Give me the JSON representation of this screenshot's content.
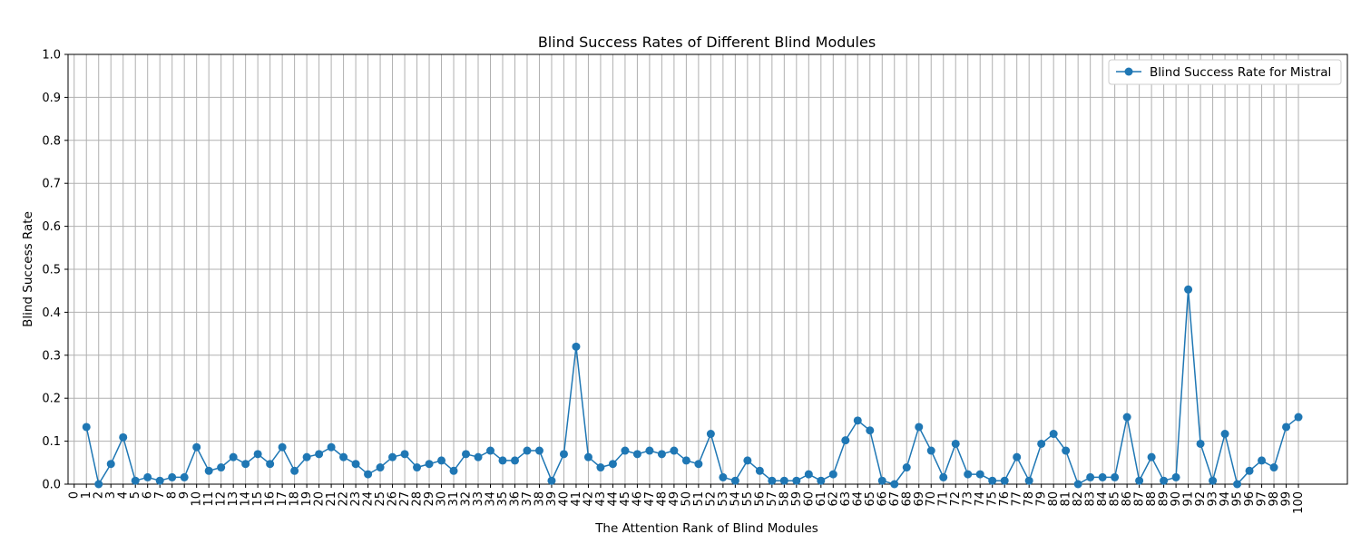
{
  "chart_data": {
    "type": "line",
    "title": "Blind Success Rates of Different Blind Modules",
    "xlabel": "The Attention Rank of Blind Modules",
    "ylabel": "Blind Success Rate",
    "xlim": [
      0,
      100
    ],
    "ylim": [
      0.0,
      1.0
    ],
    "x_ticks": [
      "0",
      "1",
      "2",
      "3",
      "4",
      "5",
      "6",
      "7",
      "8",
      "9",
      "10",
      "11",
      "12",
      "13",
      "14",
      "15",
      "16",
      "17",
      "18",
      "19",
      "20",
      "21",
      "22",
      "23",
      "24",
      "25",
      "26",
      "27",
      "28",
      "29",
      "30",
      "31",
      "32",
      "33",
      "34",
      "35",
      "36",
      "37",
      "38",
      "39",
      "40",
      "41",
      "42",
      "43",
      "44",
      "45",
      "46",
      "47",
      "48",
      "49",
      "50",
      "51",
      "52",
      "53",
      "54",
      "55",
      "56",
      "57",
      "58",
      "59",
      "60",
      "61",
      "62",
      "63",
      "64",
      "65",
      "66",
      "67",
      "68",
      "69",
      "70",
      "71",
      "72",
      "73",
      "74",
      "75",
      "76",
      "77",
      "78",
      "79",
      "80",
      "81",
      "82",
      "83",
      "84",
      "85",
      "86",
      "87",
      "88",
      "89",
      "90",
      "91",
      "92",
      "93",
      "94",
      "95",
      "96",
      "97",
      "98",
      "99",
      "100"
    ],
    "y_ticks": [
      "0.0",
      "0.1",
      "0.2",
      "0.3",
      "0.4",
      "0.5",
      "0.6",
      "0.7",
      "0.8",
      "0.9",
      "1.0"
    ],
    "grid": true,
    "legend_position": "top-right",
    "color": "#1f77b4",
    "series": [
      {
        "name": "Blind Success Rate for Mistral",
        "x": [
          1,
          2,
          3,
          4,
          5,
          6,
          7,
          8,
          9,
          10,
          11,
          12,
          13,
          14,
          15,
          16,
          17,
          18,
          19,
          20,
          21,
          22,
          23,
          24,
          25,
          26,
          27,
          28,
          29,
          30,
          31,
          32,
          33,
          34,
          35,
          36,
          37,
          38,
          39,
          40,
          41,
          42,
          43,
          44,
          45,
          46,
          47,
          48,
          49,
          50,
          51,
          52,
          53,
          54,
          55,
          56,
          57,
          58,
          59,
          60,
          61,
          62,
          63,
          64,
          65,
          66,
          67,
          68,
          69,
          70,
          71,
          72,
          73,
          74,
          75,
          76,
          77,
          78,
          79,
          80,
          81,
          82,
          83,
          84,
          85,
          86,
          87,
          88,
          89,
          90,
          91,
          92,
          93,
          94,
          95,
          96,
          97,
          98,
          99,
          100
        ],
        "y": [
          0.133,
          0.0,
          0.047,
          0.109,
          0.008,
          0.016,
          0.008,
          0.016,
          0.016,
          0.086,
          0.031,
          0.039,
          0.063,
          0.047,
          0.07,
          0.047,
          0.086,
          0.031,
          0.063,
          0.07,
          0.086,
          0.063,
          0.047,
          0.023,
          0.039,
          0.063,
          0.07,
          0.039,
          0.047,
          0.055,
          0.031,
          0.07,
          0.063,
          0.078,
          0.055,
          0.055,
          0.078,
          0.078,
          0.008,
          0.07,
          0.32,
          0.063,
          0.039,
          0.047,
          0.078,
          0.07,
          0.078,
          0.07,
          0.078,
          0.055,
          0.047,
          0.117,
          0.016,
          0.008,
          0.055,
          0.031,
          0.008,
          0.008,
          0.008,
          0.023,
          0.008,
          0.023,
          0.102,
          0.148,
          0.125,
          0.008,
          0.0,
          0.039,
          0.133,
          0.078,
          0.016,
          0.094,
          0.023,
          0.023,
          0.008,
          0.008,
          0.063,
          0.008,
          0.094,
          0.117,
          0.078,
          0.0,
          0.016,
          0.016,
          0.016,
          0.156,
          0.008,
          0.063,
          0.008,
          0.016,
          0.453,
          0.094,
          0.008,
          0.117,
          0.0,
          0.031,
          0.055,
          0.039,
          0.133,
          0.156
        ]
      }
    ]
  }
}
